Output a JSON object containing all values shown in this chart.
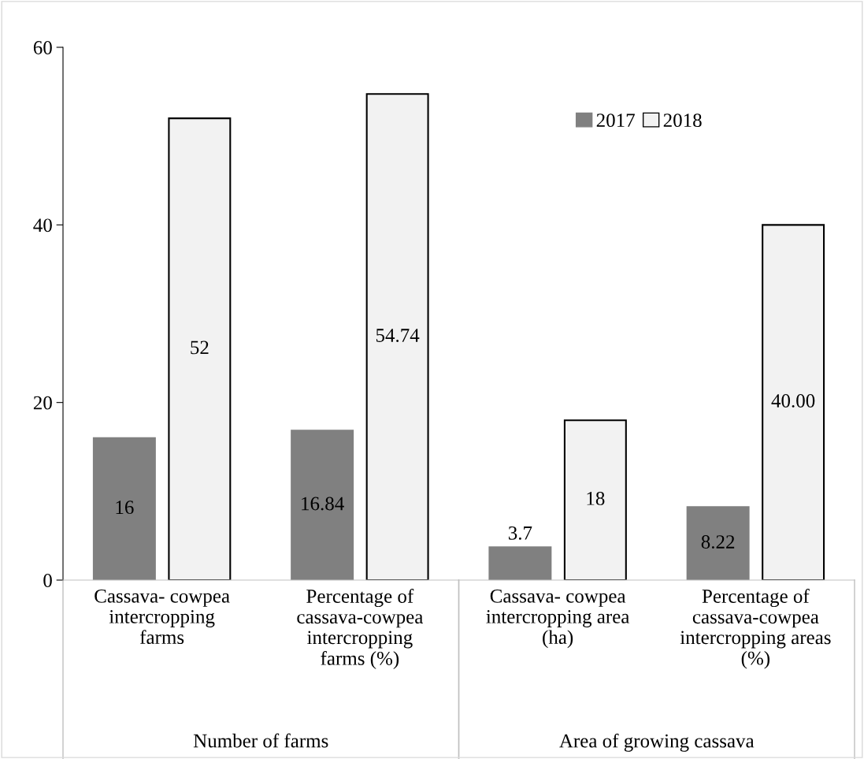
{
  "chart_data": {
    "type": "bar",
    "categories": [
      "Cassava- cowpea\nintercropping\nfarms",
      "Percentage of\ncassava-cowpea\nintercropping\nfarms (%)",
      "Cassava- cowpea\nintercropping area\n(ha)",
      "Percentage of\ncassava-cowpea\nintercropping areas\n(%)"
    ],
    "series": [
      {
        "name": "2017",
        "color": "#808080",
        "values": [
          16,
          16.84,
          3.7,
          8.22
        ],
        "value_labels": [
          "16",
          "16.84",
          "3.7",
          "8.22"
        ]
      },
      {
        "name": "2018",
        "color": "#f2f2f2",
        "values": [
          52,
          54.74,
          18,
          40
        ],
        "value_labels": [
          "52",
          "54.74",
          "18",
          "40.00"
        ]
      }
    ],
    "annotations": [
      "Number of farms",
      "Area of growing cassava"
    ],
    "ylim": [
      0,
      60
    ],
    "yticks": [
      0,
      20,
      40,
      60
    ],
    "grid": false,
    "legend": "top right"
  }
}
